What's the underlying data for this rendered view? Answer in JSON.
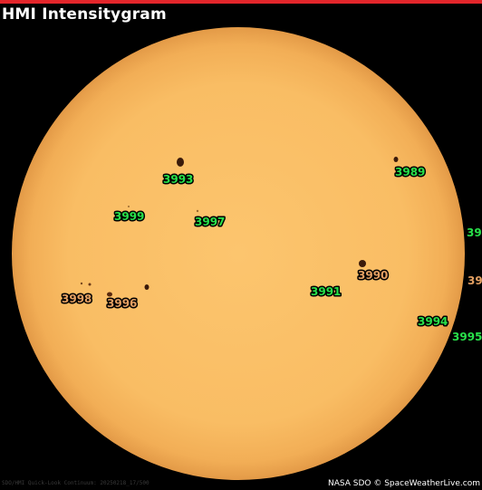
{
  "title": "HMI Intensitygram",
  "caption": "SDO/HMI Quick-Look Continuum: 20250218_17/500",
  "credit": "NASA SDO © SpaceWeatherLive.com",
  "colors": {
    "disk": "#fbc26a",
    "limb": "#e9a24e",
    "green_label": "#28e04a",
    "orange_label": "#e4a062"
  },
  "regions": [
    {
      "number": "3993",
      "color": "green"
    },
    {
      "number": "3989",
      "color": "green"
    },
    {
      "number": "3999",
      "color": "green"
    },
    {
      "number": "3997",
      "color": "green"
    },
    {
      "number": "3998",
      "color": "orange"
    },
    {
      "number": "3996",
      "color": "orange"
    },
    {
      "number": "3990",
      "color": "orange"
    },
    {
      "number": "3991",
      "color": "green"
    },
    {
      "number": "3994",
      "color": "green"
    },
    {
      "number": "3995",
      "color": "green"
    },
    {
      "number": "39",
      "color": "green"
    },
    {
      "number": "39",
      "color": "orange"
    }
  ]
}
